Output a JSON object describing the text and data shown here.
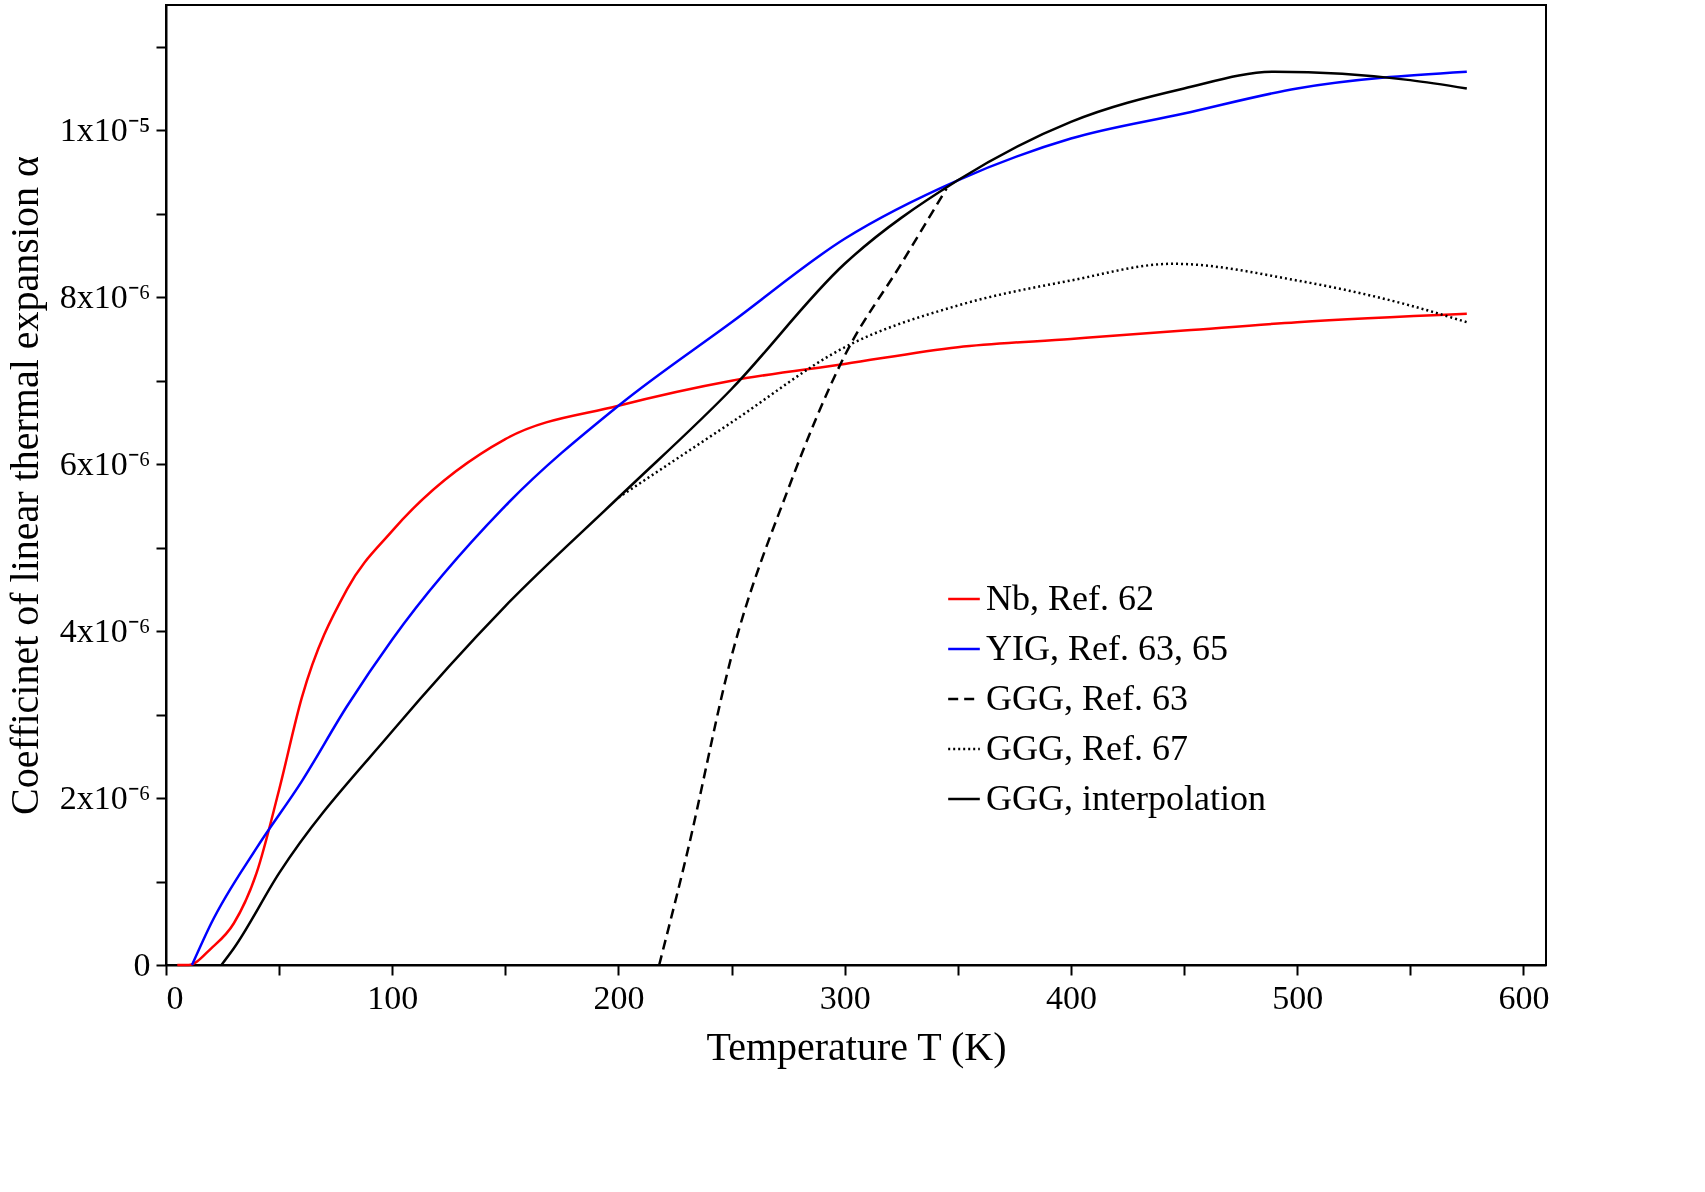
{
  "chart_data": {
    "type": "line",
    "xlabel": "Temperature T (K)",
    "ylabel": "Coefficinet of linear thermal expansion  α",
    "xlim": [
      0,
      610
    ],
    "ylim": [
      0,
      1.15e-05
    ],
    "xticks": [
      0,
      {
        "value": 50,
        "label": null
      },
      100,
      {
        "value": 150,
        "label": null
      },
      200,
      {
        "value": 250,
        "label": null
      },
      300,
      {
        "value": 350,
        "label": null
      },
      400,
      {
        "value": 450,
        "label": null
      },
      500,
      {
        "value": 550,
        "label": null
      },
      600
    ],
    "yticks": [
      0,
      {
        "value": 1e-06,
        "label": null
      },
      {
        "value": 2e-06,
        "label": "2x10⁻⁶"
      },
      {
        "value": 3e-06,
        "label": null
      },
      {
        "value": 4e-06,
        "label": "4x10⁻⁶"
      },
      {
        "value": 5e-06,
        "label": null
      },
      {
        "value": 6e-06,
        "label": "6x10⁻⁶"
      },
      {
        "value": 7e-06,
        "label": null
      },
      {
        "value": 8e-06,
        "label": "8x10⁻⁶"
      },
      {
        "value": 9e-06,
        "label": null
      },
      {
        "value": 1e-05,
        "label": "1x10⁻⁵"
      },
      {
        "value": 1.1e-05,
        "label": null
      }
    ],
    "grid": false,
    "legend": "right",
    "marker": "none",
    "series": [
      {
        "name": "Nb, Ref. 62",
        "color": "#ff0000",
        "line_style": "solid",
        "x": [
          5,
          10,
          20,
          30,
          40,
          50,
          60,
          80,
          100,
          150,
          200,
          250,
          300,
          350,
          400,
          450,
          500,
          575
        ],
        "values": [
          0,
          0,
          2e-07,
          5e-07,
          1.1e-06,
          2.1e-06,
          3.2e-06,
          4.5e-06,
          5.2e-06,
          6.3e-06,
          6.7e-06,
          7e-06,
          7.2e-06,
          7.4e-06,
          7.5e-06,
          7.6e-06,
          7.7e-06,
          7.8e-06
        ]
      },
      {
        "name": "YIG, Ref. 63, 65",
        "color": "#0000ff",
        "line_style": "solid",
        "x": [
          11.5,
          20,
          40,
          60,
          80,
          100,
          150,
          200,
          250,
          300,
          350,
          400,
          450,
          500,
          575
        ],
        "values": [
          0,
          5e-07,
          1.4e-06,
          2.2e-06,
          3.1e-06,
          3.9e-06,
          5.5e-06,
          6.7e-06,
          7.7e-06,
          8.7e-06,
          9.4e-06,
          9.9e-06,
          1.02e-05,
          1.05e-05,
          1.07e-05
        ]
      },
      {
        "name": "GGG, Ref. 63",
        "color": "#000000",
        "line_style": "dashed",
        "x": [
          218,
          230,
          250,
          275,
          300,
          325,
          345
        ],
        "values": [
          0,
          1.3e-06,
          3.7e-06,
          5.7e-06,
          7.3e-06,
          8.4e-06,
          9.3e-06
        ]
      },
      {
        "name": "GGG, Ref. 67",
        "color": "#000000",
        "line_style": "dotted",
        "x": [
          200,
          250,
          300,
          350,
          400,
          445,
          500,
          550,
          575
        ],
        "values": [
          5.6e-06,
          6.5e-06,
          7.4e-06,
          7.9e-06,
          8.2e-06,
          8.4e-06,
          8.2e-06,
          7.9e-06,
          7.7e-06
        ]
      },
      {
        "name": "GGG, interpolation",
        "color": "#000000",
        "line_style": "solid",
        "x": [
          24.5,
          30,
          50,
          100,
          150,
          200,
          250,
          300,
          350,
          400,
          450,
          490,
          550,
          575
        ],
        "values": [
          0,
          2e-07,
          1.1e-06,
          2.8e-06,
          4.3e-06,
          5.6e-06,
          6.9e-06,
          8.4e-06,
          9.4e-06,
          1.01e-05,
          1.05e-05,
          1.07e-05,
          1.06e-05,
          1.05e-05
        ]
      }
    ]
  }
}
